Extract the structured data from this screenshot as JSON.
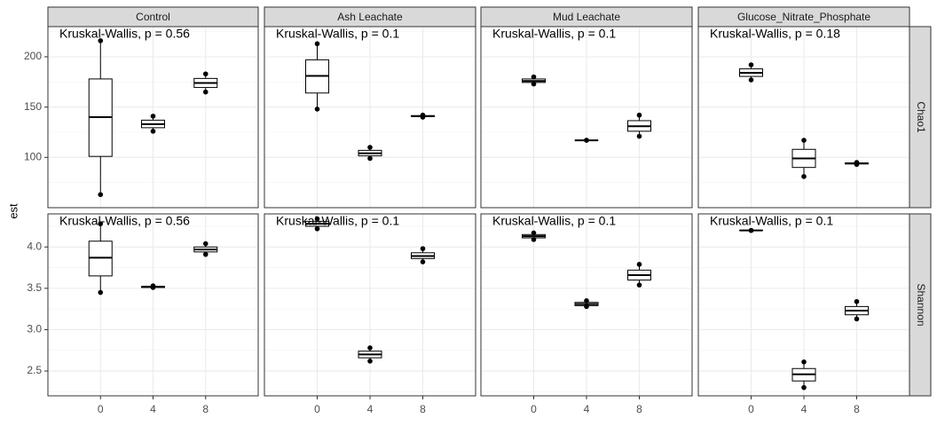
{
  "chart_data": {
    "type": "boxplot",
    "ylabel": "est",
    "xlabel": "",
    "x_categories": [
      "0",
      "4",
      "8"
    ],
    "col_facets": [
      "Control",
      "Ash Leachate",
      "Mud Leachate",
      "Glucose_Nitrate_Phosphate"
    ],
    "row_facets": [
      "Chao1",
      "Shannon"
    ],
    "grid": true,
    "rows": [
      {
        "name": "Chao1",
        "ylim": [
          50,
          230
        ],
        "yticks": [
          100,
          150,
          200
        ],
        "panels": [
          {
            "facet": "Control",
            "annotation": "Kruskal-Wallis, p = 0.56",
            "boxes": [
              {
                "x": "0",
                "min": 63,
                "q1": 101,
                "median": 140,
                "q3": 178,
                "max": 216
              },
              {
                "x": "4",
                "min": 126,
                "q1": 129.5,
                "median": 133,
                "q3": 137,
                "max": 141
              },
              {
                "x": "8",
                "min": 165,
                "q1": 169.5,
                "median": 174,
                "q3": 178.5,
                "max": 183
              }
            ]
          },
          {
            "facet": "Ash Leachate",
            "annotation": "Kruskal-Wallis, p = 0.1",
            "boxes": [
              {
                "x": "0",
                "min": 148,
                "q1": 164,
                "median": 181,
                "q3": 197,
                "max": 213
              },
              {
                "x": "4",
                "min": 99,
                "q1": 101.5,
                "median": 104,
                "q3": 107,
                "max": 110
              },
              {
                "x": "8",
                "min": 140,
                "q1": 140.5,
                "median": 141,
                "q3": 141.5,
                "max": 142
              }
            ]
          },
          {
            "facet": "Mud Leachate",
            "annotation": "Kruskal-Wallis, p = 0.1",
            "boxes": [
              {
                "x": "0",
                "min": 173,
                "q1": 174.5,
                "median": 176,
                "q3": 178,
                "max": 180
              },
              {
                "x": "4",
                "min": 117,
                "q1": 117,
                "median": 117,
                "q3": 117,
                "max": 117
              },
              {
                "x": "8",
                "min": 121,
                "q1": 126,
                "median": 131,
                "q3": 136.5,
                "max": 142
              }
            ]
          },
          {
            "facet": "Glucose_Nitrate_Phosphate",
            "annotation": "Kruskal-Wallis, p = 0.18",
            "boxes": [
              {
                "x": "0",
                "min": 177,
                "q1": 180.5,
                "median": 184,
                "q3": 188,
                "max": 192
              },
              {
                "x": "4",
                "min": 81,
                "q1": 90,
                "median": 99,
                "q3": 108,
                "max": 117
              },
              {
                "x": "8",
                "min": 93,
                "q1": 93.5,
                "median": 94,
                "q3": 94.5,
                "max": 95
              }
            ]
          }
        ]
      },
      {
        "name": "Shannon",
        "ylim": [
          2.2,
          4.4
        ],
        "yticks": [
          2.5,
          3.0,
          3.5,
          4.0
        ],
        "panels": [
          {
            "facet": "Control",
            "annotation": "Kruskal-Wallis, p = 0.56",
            "boxes": [
              {
                "x": "0",
                "min": 3.45,
                "q1": 3.65,
                "median": 3.87,
                "q3": 4.07,
                "max": 4.28
              },
              {
                "x": "4",
                "min": 3.51,
                "q1": 3.51,
                "median": 3.52,
                "q3": 3.52,
                "max": 3.53
              },
              {
                "x": "8",
                "min": 3.91,
                "q1": 3.94,
                "median": 3.97,
                "q3": 4.0,
                "max": 4.04
              }
            ]
          },
          {
            "facet": "Ash Leachate",
            "annotation": "Kruskal-Wallis, p = 0.1",
            "boxes": [
              {
                "x": "0",
                "min": 4.22,
                "q1": 4.25,
                "median": 4.28,
                "q3": 4.31,
                "max": 4.34
              },
              {
                "x": "4",
                "min": 2.62,
                "q1": 2.66,
                "median": 2.7,
                "q3": 2.74,
                "max": 2.78
              },
              {
                "x": "8",
                "min": 3.82,
                "q1": 3.86,
                "median": 3.89,
                "q3": 3.93,
                "max": 3.98
              }
            ]
          },
          {
            "facet": "Mud Leachate",
            "annotation": "Kruskal-Wallis, p = 0.1",
            "boxes": [
              {
                "x": "0",
                "min": 4.09,
                "q1": 4.11,
                "median": 4.13,
                "q3": 4.15,
                "max": 4.17
              },
              {
                "x": "4",
                "min": 3.28,
                "q1": 3.29,
                "median": 3.31,
                "q3": 3.33,
                "max": 3.35
              },
              {
                "x": "8",
                "min": 3.54,
                "q1": 3.6,
                "median": 3.66,
                "q3": 3.72,
                "max": 3.79
              }
            ]
          },
          {
            "facet": "Glucose_Nitrate_Phosphate",
            "annotation": "Kruskal-Wallis, p = 0.1",
            "boxes": [
              {
                "x": "0",
                "min": 4.2,
                "q1": 4.2,
                "median": 4.2,
                "q3": 4.2,
                "max": 4.2
              },
              {
                "x": "4",
                "min": 2.3,
                "q1": 2.38,
                "median": 2.46,
                "q3": 2.53,
                "max": 2.61
              },
              {
                "x": "8",
                "min": 3.13,
                "q1": 3.18,
                "median": 3.23,
                "q3": 3.28,
                "max": 3.34
              }
            ]
          }
        ]
      }
    ]
  }
}
